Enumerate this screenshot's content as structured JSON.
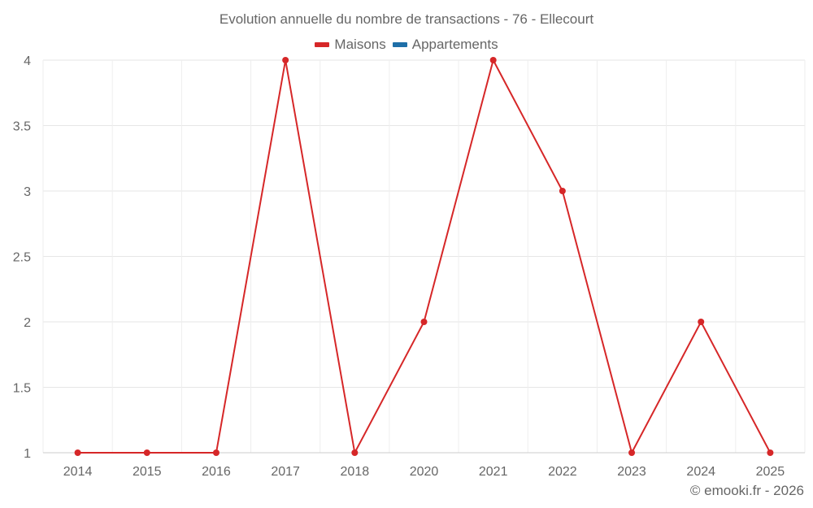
{
  "chart_data": {
    "type": "line",
    "title": "Evolution annuelle du nombre de transactions - 76 - Ellecourt",
    "categories": [
      "2014",
      "2015",
      "2016",
      "2017",
      "2018",
      "2020",
      "2021",
      "2022",
      "2023",
      "2024",
      "2025"
    ],
    "series": [
      {
        "name": "Maisons",
        "color": "#d62728",
        "values": [
          1,
          1,
          1,
          4,
          1,
          2,
          4,
          3,
          1,
          2,
          1
        ]
      },
      {
        "name": "Appartements",
        "color": "#1f6fa8",
        "values": []
      }
    ],
    "xlabel": "",
    "ylabel": "",
    "ylim": [
      1,
      4
    ],
    "yticks": [
      "1",
      "1.5",
      "2",
      "2.5",
      "3",
      "3.5",
      "4"
    ],
    "grid": true,
    "legend_position": "top"
  },
  "header": {
    "title": "Evolution annuelle du nombre de transactions - 76 - Ellecourt"
  },
  "legend": {
    "items": [
      {
        "label": "Maisons",
        "color": "#d62728"
      },
      {
        "label": "Appartements",
        "color": "#1f6fa8"
      }
    ]
  },
  "footer": {
    "credit": "© emooki.fr - 2026"
  }
}
